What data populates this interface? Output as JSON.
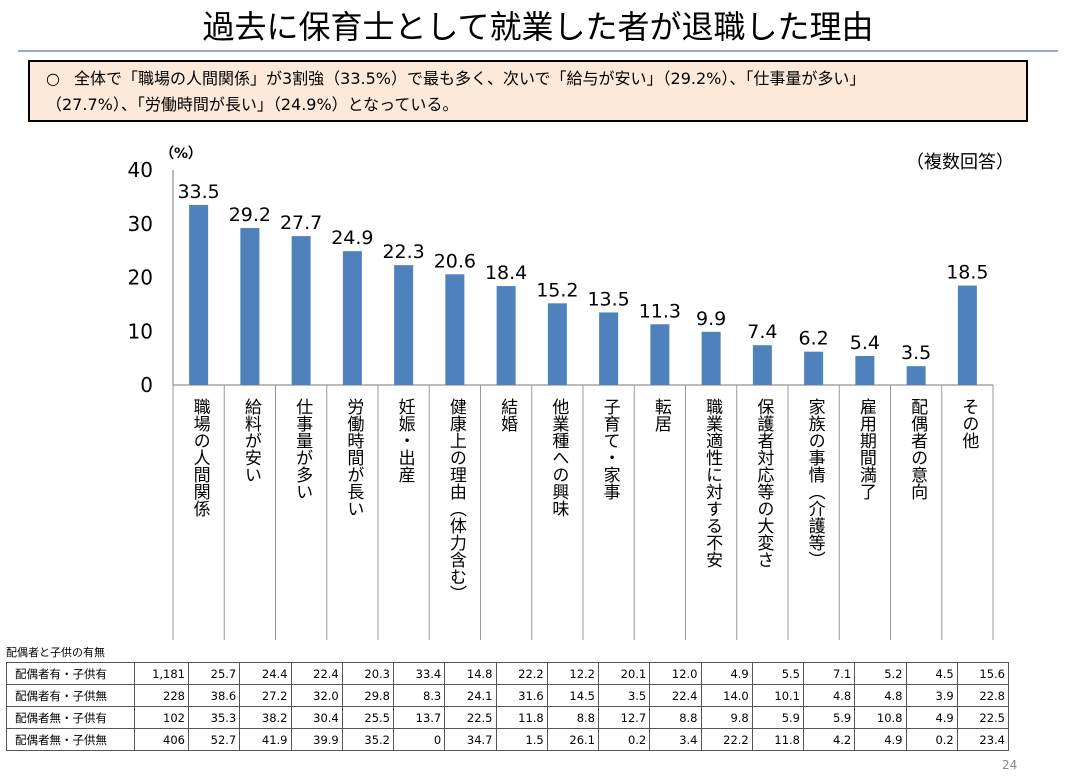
{
  "title": "過去に保育士として就業した者が退職した理由",
  "summary": {
    "mark": "○",
    "line1": "全体で「職場の人間関係」が3割強（33.5%）で最も多く、次いで「給与が安い」（29.2%）、「仕事量が多い」",
    "line2": "（27.7%）、「労働時間が長い」（24.9%）となっている。"
  },
  "colors": {
    "bar": "#4f81bd",
    "summary_bg": "#fde9d9",
    "title_rule": "#9aa9c8"
  },
  "chart_data": {
    "type": "bar",
    "unit_label": "（%）",
    "note": "（複数回答）",
    "ylim": [
      0,
      40
    ],
    "yticks": [
      0,
      10,
      20,
      30,
      40
    ],
    "categories": [
      "職場の人間関係",
      "給料が安い",
      "仕事量が多い",
      "労働時間が長い",
      "妊娠・出産",
      "健康上の理由（体力含む）",
      "結婚",
      "他業種への興味",
      "子育て・家事",
      "転居",
      "職業適性に対する不安",
      "保護者対応等の大変さ",
      "家族の事情（介護等）",
      "雇用期間満了",
      "配偶者の意向",
      "その他"
    ],
    "values": [
      33.5,
      29.2,
      27.7,
      24.9,
      22.3,
      20.6,
      18.4,
      15.2,
      13.5,
      11.3,
      9.9,
      7.4,
      6.2,
      5.4,
      3.5,
      18.5
    ],
    "value_labels": [
      "33.5",
      "29.2",
      "27.7",
      "24.9",
      "22.3",
      "20.6",
      "18.4",
      "15.2",
      "13.5",
      "11.3",
      "9.9",
      "7.4",
      "6.2",
      "5.4",
      "3.5",
      "18.5"
    ]
  },
  "table": {
    "caption": "配偶者と子供の有無",
    "rows": [
      {
        "label": "配偶者有・子供有",
        "n": "1,181",
        "cells": [
          "25.7",
          "24.4",
          "22.4",
          "20.3",
          "33.4",
          "14.8",
          "22.2",
          "12.2",
          "20.1",
          "12.0",
          "4.9",
          "5.5",
          "7.1",
          "5.2",
          "4.5",
          "15.6"
        ]
      },
      {
        "label": "配偶者有・子供無",
        "n": "228",
        "cells": [
          "38.6",
          "27.2",
          "32.0",
          "29.8",
          "8.3",
          "24.1",
          "31.6",
          "14.5",
          "3.5",
          "22.4",
          "14.0",
          "10.1",
          "4.8",
          "4.8",
          "3.9",
          "22.8"
        ]
      },
      {
        "label": "配偶者無・子供有",
        "n": "102",
        "cells": [
          "35.3",
          "38.2",
          "30.4",
          "25.5",
          "13.7",
          "22.5",
          "11.8",
          "8.8",
          "12.7",
          "8.8",
          "9.8",
          "5.9",
          "5.9",
          "10.8",
          "4.9",
          "22.5"
        ]
      },
      {
        "label": "配偶者無・子供無",
        "n": "406",
        "cells": [
          "52.7",
          "41.9",
          "39.9",
          "35.2",
          "0",
          "34.7",
          "1.5",
          "26.1",
          "0.2",
          "3.4",
          "22.2",
          "11.8",
          "4.2",
          "4.9",
          "0.2",
          "23.4"
        ]
      }
    ]
  },
  "page_number": "24"
}
